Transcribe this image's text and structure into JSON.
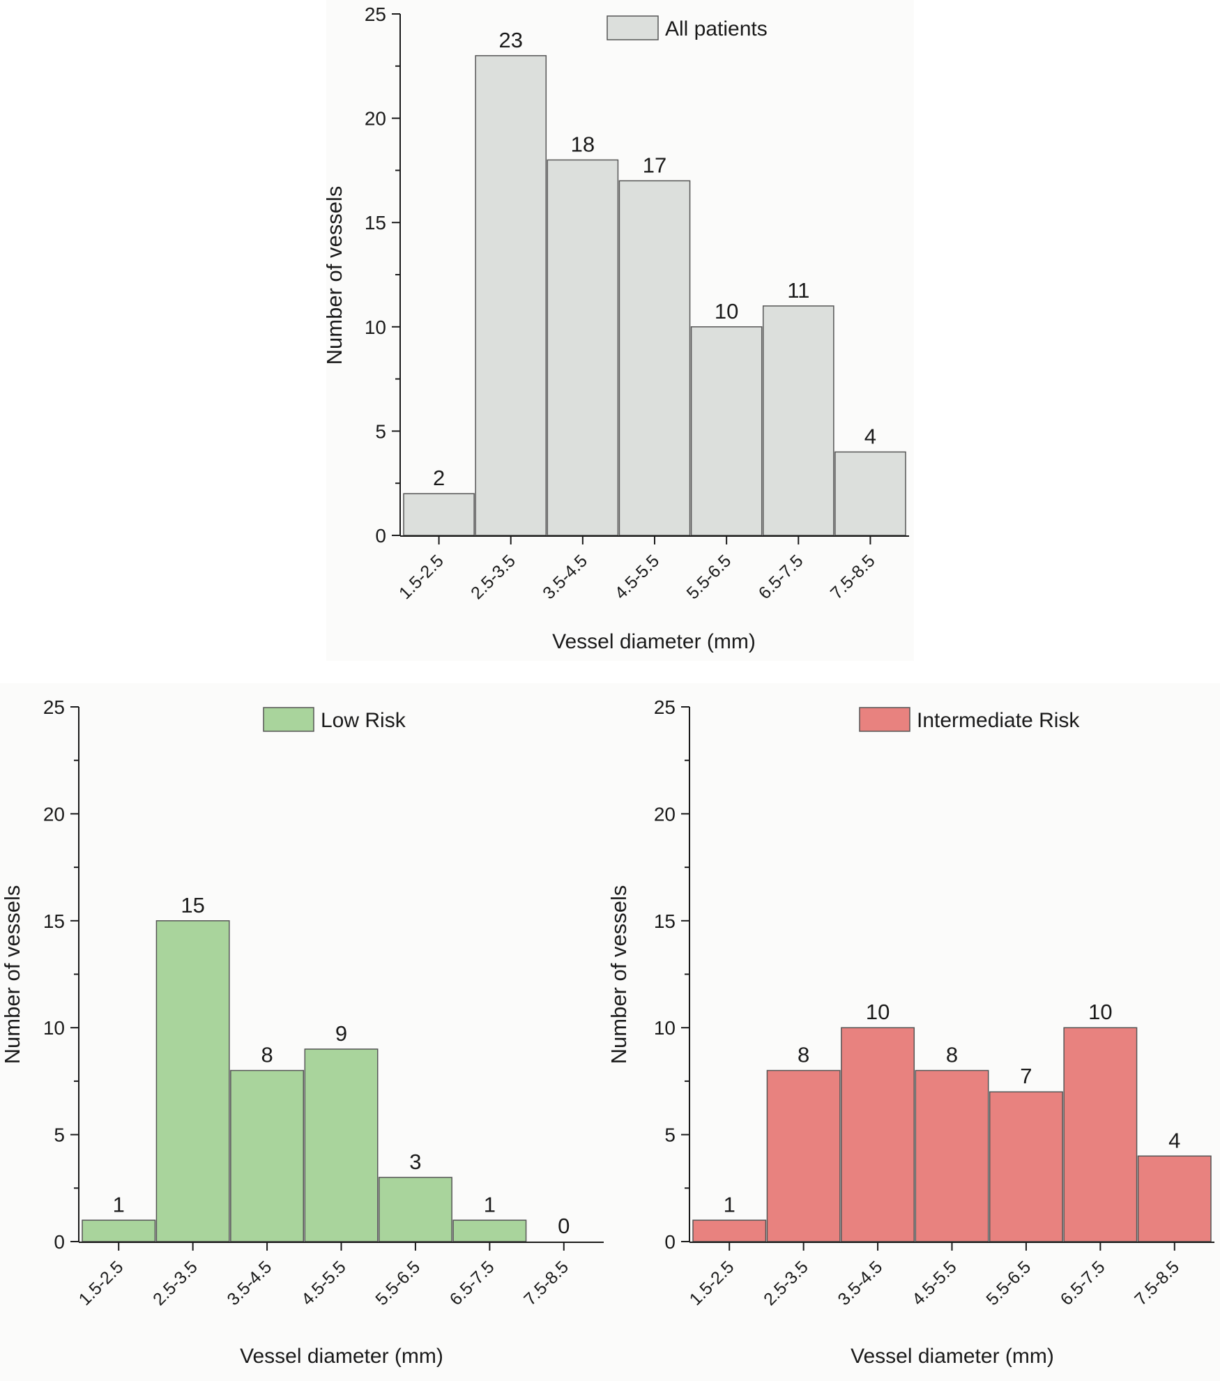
{
  "chart_data": [
    {
      "type": "bar",
      "id": "all-patients",
      "categories": [
        "1.5-2.5",
        "2.5-3.5",
        "3.5-4.5",
        "4.5-5.5",
        "5.5-6.5",
        "6.5-7.5",
        "7.5-8.5"
      ],
      "series": [
        {
          "name": "All patients",
          "values": [
            2,
            23,
            18,
            17,
            10,
            11,
            4
          ]
        }
      ],
      "data_labels": [
        "2",
        "23",
        "18",
        "17",
        "10",
        "11",
        "4"
      ],
      "xlabel": "Vessel diameter (mm)",
      "ylabel": "Number of vessels",
      "ylim": [
        0,
        25
      ],
      "yticks": [
        0,
        5,
        10,
        15,
        20,
        25
      ],
      "ytick_labels": [
        "0",
        "5",
        "10",
        "15",
        "20",
        "25"
      ],
      "legend": "All patients",
      "legend_position": "top-right",
      "color": "#dcdfdc",
      "background": "#fbfbfa",
      "grid": false
    },
    {
      "type": "bar",
      "id": "low-risk",
      "categories": [
        "1.5-2.5",
        "2.5-3.5",
        "3.5-4.5",
        "4.5-5.5",
        "5.5-6.5",
        "6.5-7.5",
        "7.5-8.5"
      ],
      "series": [
        {
          "name": "Low Risk",
          "values": [
            1,
            15,
            8,
            9,
            3,
            1,
            0
          ]
        }
      ],
      "data_labels": [
        "1",
        "15",
        "8",
        "9",
        "3",
        "1",
        "0"
      ],
      "xlabel": "Vessel diameter (mm)",
      "ylabel": "Number of vessels",
      "ylim": [
        0,
        25
      ],
      "yticks": [
        0,
        5,
        10,
        15,
        20,
        25
      ],
      "ytick_labels": [
        "0",
        "5",
        "10",
        "15",
        "20",
        "25"
      ],
      "legend": "Low Risk",
      "legend_position": "top-right",
      "color": "#a9d49c",
      "background": "#fbfbfa",
      "grid": false
    },
    {
      "type": "bar",
      "id": "intermediate-risk",
      "categories": [
        "1.5-2.5",
        "2.5-3.5",
        "3.5-4.5",
        "4.5-5.5",
        "5.5-6.5",
        "6.5-7.5",
        "7.5-8.5"
      ],
      "series": [
        {
          "name": "Intermediate Risk",
          "values": [
            1,
            8,
            10,
            8,
            7,
            10,
            4
          ]
        }
      ],
      "data_labels": [
        "1",
        "8",
        "10",
        "8",
        "7",
        "10",
        "4"
      ],
      "xlabel": "Vessel diameter (mm)",
      "ylabel": "Number of vessels",
      "ylim": [
        0,
        25
      ],
      "yticks": [
        0,
        5,
        10,
        15,
        20,
        25
      ],
      "ytick_labels": [
        "0",
        "5",
        "10",
        "15",
        "20",
        "25"
      ],
      "legend": "Intermediate Risk",
      "legend_position": "top-right",
      "color": "#e8827f",
      "background": "#fbfbfa",
      "grid": false
    }
  ],
  "colors": {
    "axis": "#1a1a1a",
    "bar_edge": "#555555",
    "text": "#1a1a1a"
  }
}
